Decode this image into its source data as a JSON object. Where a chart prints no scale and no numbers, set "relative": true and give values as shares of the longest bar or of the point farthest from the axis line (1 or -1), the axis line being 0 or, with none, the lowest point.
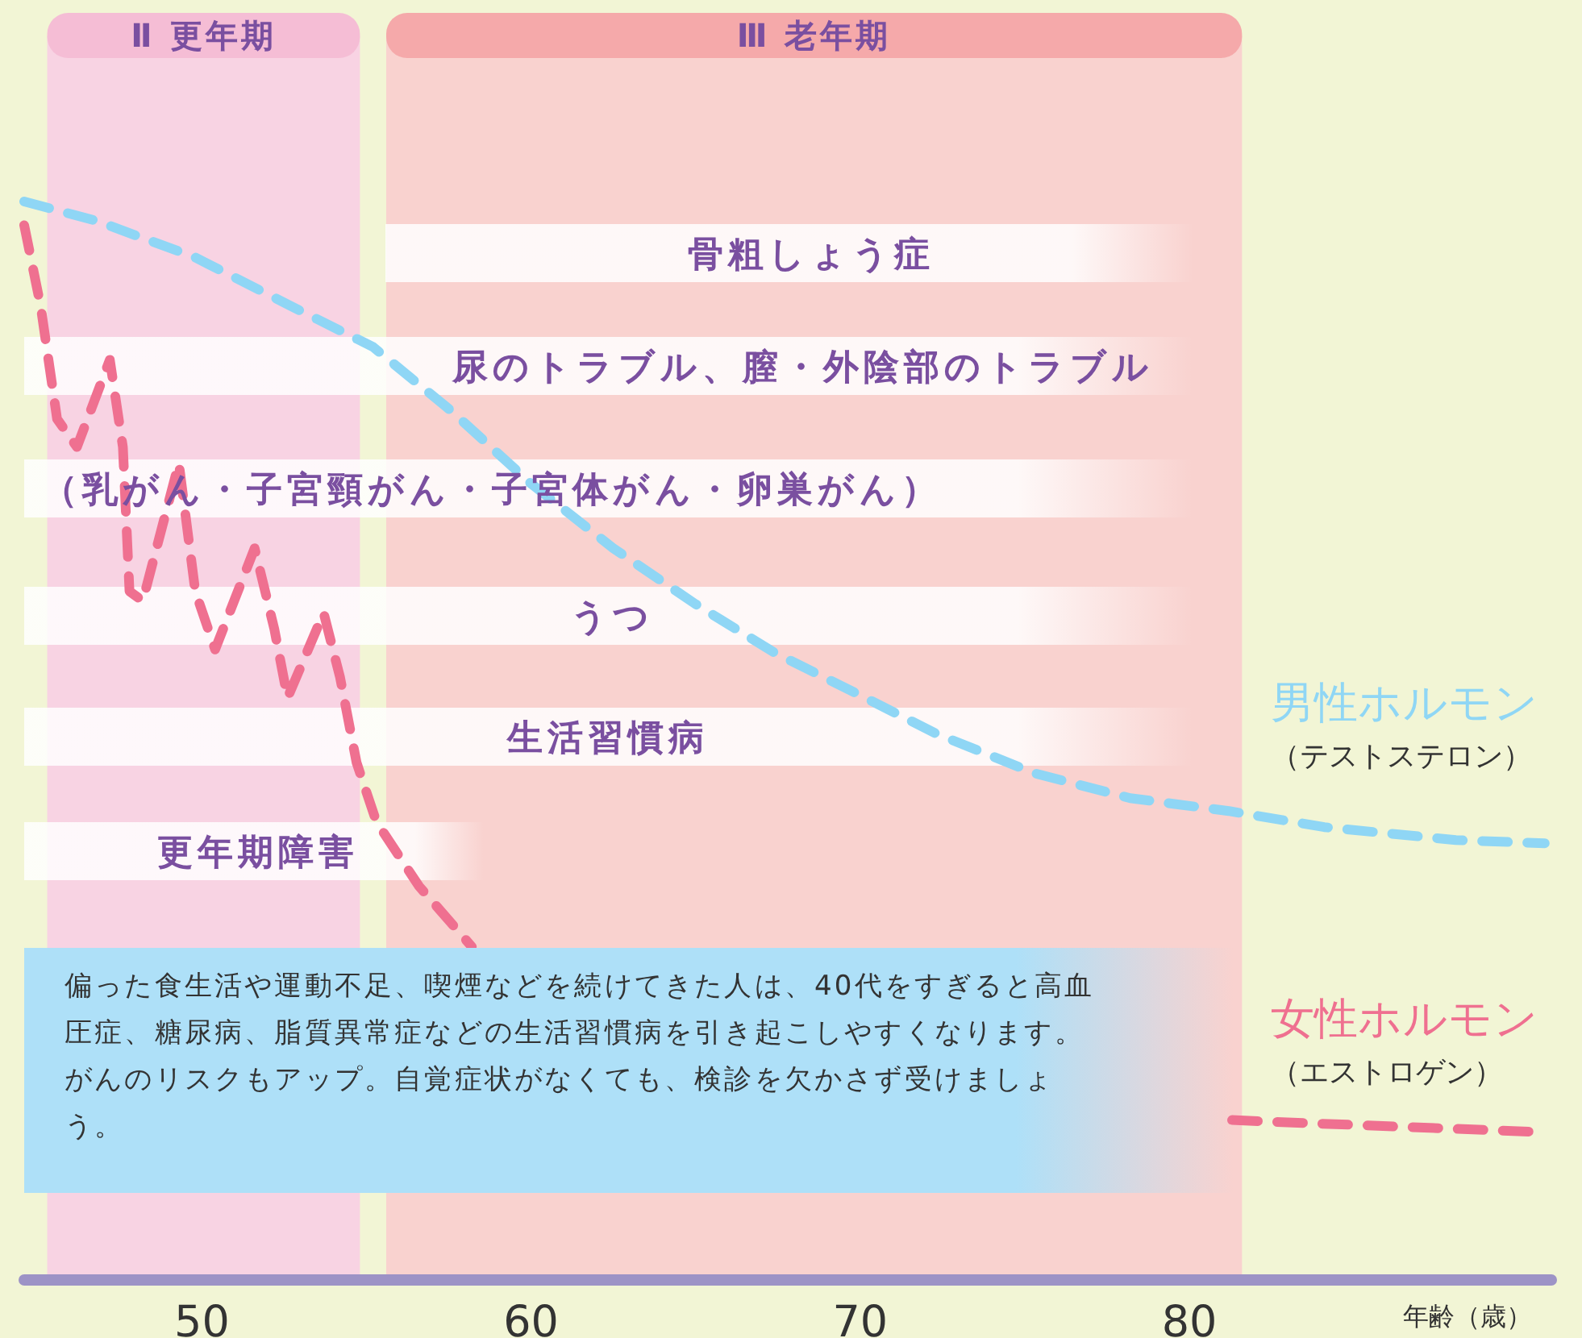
{
  "chart_data": {
    "type": "line",
    "relative": true,
    "line_style": "dashed",
    "xlabel": "年齢（歳）",
    "xlim": [
      44.6,
      91.0
    ],
    "xticks": [
      50,
      60,
      70,
      80
    ],
    "bands": [
      {
        "axis": "x",
        "from": 45.3,
        "to": 54.8,
        "label": "Ⅱ 更年期",
        "color": "#f8d3e3"
      },
      {
        "axis": "x",
        "from": 55.6,
        "to": 81.6,
        "label": "Ⅲ 老年期",
        "color": "#f9d2cf"
      }
    ],
    "series": [
      {
        "name": "男性ホルモン",
        "color": "#8fd6f5",
        "x": [
          44.6,
          46.8,
          49.8,
          52.7,
          55.2,
          57.6,
          60.0,
          62.5,
          65.0,
          67.4,
          69.9,
          72.3,
          75.3,
          78.2,
          81.2,
          84.1,
          88.1,
          90.8
        ],
        "values": [
          1.0,
          0.982,
          0.948,
          0.903,
          0.865,
          0.805,
          0.738,
          0.678,
          0.626,
          0.581,
          0.543,
          0.506,
          0.469,
          0.446,
          0.434,
          0.419,
          0.407,
          0.404
        ]
      },
      {
        "name": "女性ホルモン",
        "color": "#ef7090",
        "x": [
          44.6,
          45.1,
          45.6,
          46.2,
          47.2,
          47.6,
          47.8,
          48.2,
          49.3,
          49.8,
          50.4,
          51.6,
          52.2,
          52.6,
          53.7,
          54.2,
          54.7,
          55.3,
          56.6,
          58.2,
          70.0,
          81.3,
          83.7,
          90.6
        ],
        "values": [
          0.978,
          0.903,
          0.798,
          0.772,
          0.853,
          0.772,
          0.638,
          0.629,
          0.757,
          0.638,
          0.584,
          0.678,
          0.603,
          0.539,
          0.618,
          0.558,
          0.479,
          0.424,
          0.364,
          0.308,
          null,
          0.147,
          0.144,
          0.136
        ]
      }
    ],
    "annotations": [
      "骨粗しょう症",
      "尿のトラブル、膣・外陰部のトラブル",
      "（乳がん・子宮頸がん・子宮体がん・卵巣がん）",
      "うつ",
      "生活習慣病",
      "更年期障害",
      "偏った食生活や運動不足、喫煙などを続けてきた人は、40代をすぎると高血圧症、糖尿病、脂質異常症などの生活習慣病を引き起こしやすくなります。がんのリスクもアップ。自覚症状がなくても、検診を欠かさず受けましょう。",
      "（テストステロン）",
      "（エストロゲン）"
    ]
  }
}
